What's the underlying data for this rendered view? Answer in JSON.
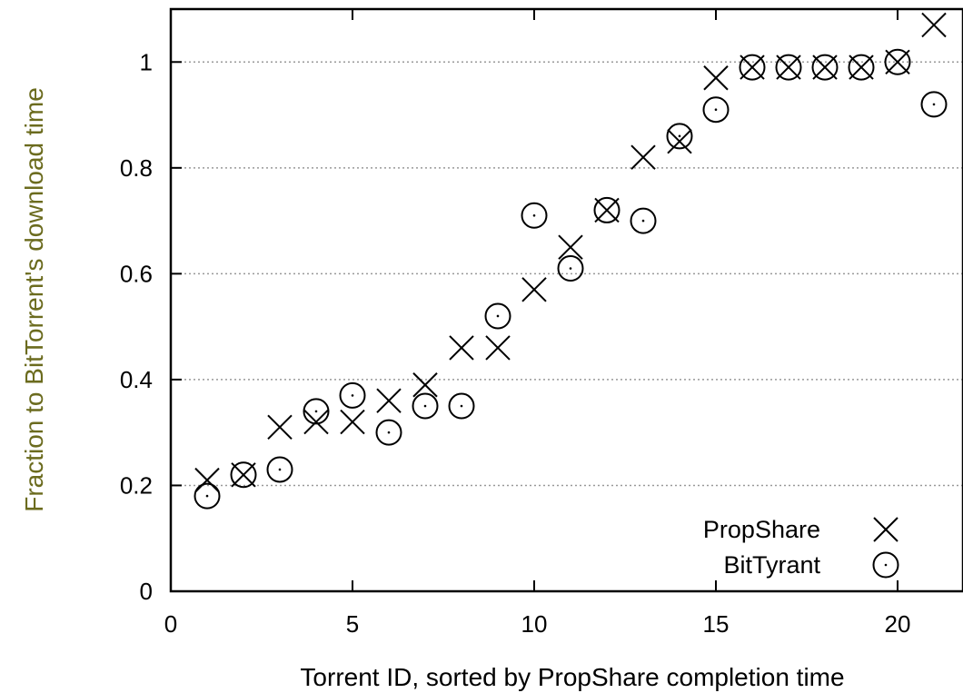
{
  "chart_data": {
    "type": "scatter",
    "title": "",
    "xlabel": "Torrent ID, sorted by PropShare completion time",
    "ylabel": "Fraction to BitTorrent's download time",
    "xlim": [
      0,
      21.8
    ],
    "ylim": [
      0,
      1.1
    ],
    "xticks": [
      "0",
      "5",
      "10",
      "15",
      "20"
    ],
    "yticks": [
      "0",
      "0.2",
      "0.4",
      "0.6",
      "0.8",
      "1"
    ],
    "grid": "horizontal dotted",
    "legend_position": "bottom-right",
    "colors": {
      "ylabel": "#6b6b1e",
      "marks": "#000000",
      "grid": "#999999"
    },
    "series": [
      {
        "name": "PropShare",
        "marker": "x",
        "x": [
          1,
          2,
          3,
          4,
          5,
          6,
          7,
          8,
          9,
          10,
          11,
          12,
          13,
          14,
          15,
          16,
          17,
          18,
          19,
          20,
          21
        ],
        "y": [
          0.21,
          0.22,
          0.31,
          0.32,
          0.32,
          0.36,
          0.39,
          0.46,
          0.46,
          0.57,
          0.65,
          0.72,
          0.82,
          0.85,
          0.97,
          0.99,
          0.99,
          0.99,
          0.99,
          1.0,
          1.07
        ]
      },
      {
        "name": "BitTyrant",
        "marker": "circle",
        "x": [
          1,
          2,
          3,
          4,
          5,
          6,
          7,
          8,
          9,
          10,
          11,
          12,
          13,
          14,
          15,
          16,
          17,
          18,
          19,
          20,
          21
        ],
        "y": [
          0.18,
          0.22,
          0.23,
          0.34,
          0.37,
          0.3,
          0.35,
          0.35,
          0.52,
          0.71,
          0.61,
          0.72,
          0.7,
          0.86,
          0.91,
          0.99,
          0.99,
          0.99,
          0.99,
          1.0,
          0.92
        ]
      }
    ]
  }
}
